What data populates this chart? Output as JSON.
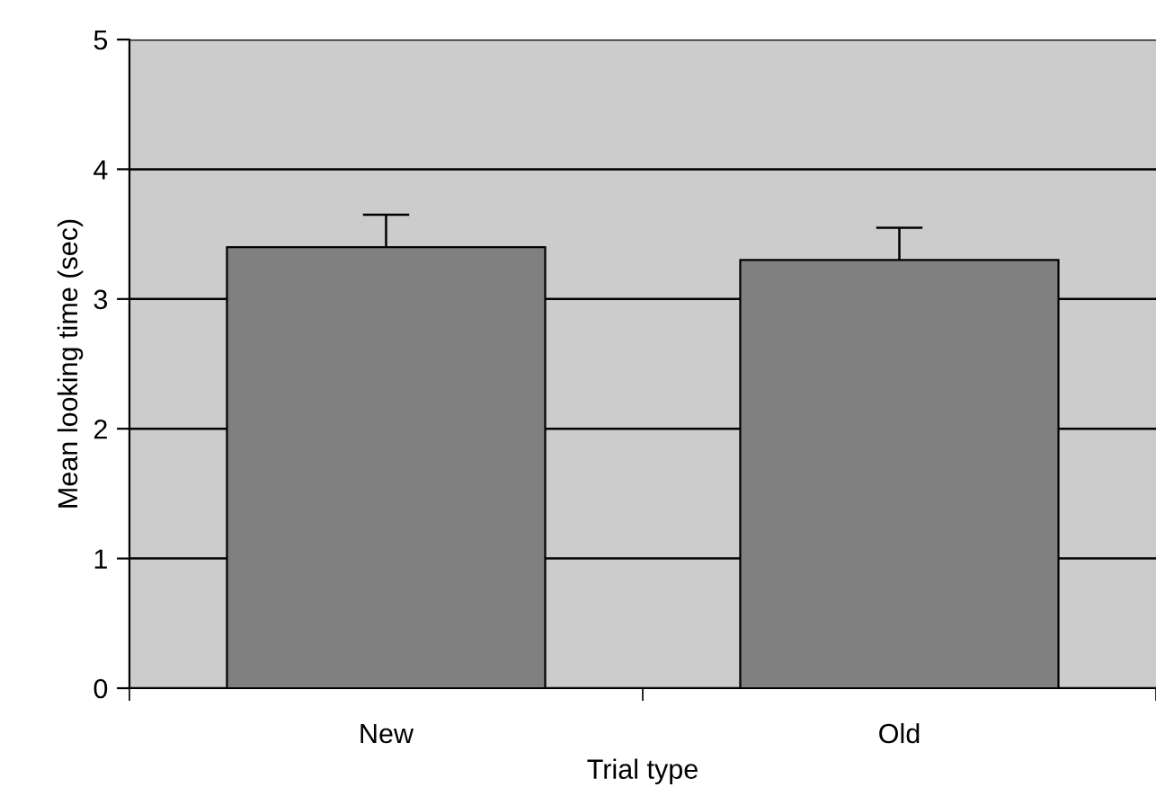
{
  "chart_data": {
    "type": "bar",
    "xlabel": "Trial type",
    "ylabel": "Mean looking time (sec)",
    "categories": [
      "New",
      "Old"
    ],
    "values": [
      3.4,
      3.3
    ],
    "color": "#808080",
    "errors": [
      [
        3.4,
        3.65
      ],
      [
        3.3,
        3.55
      ]
    ],
    "ylim": [
      0,
      5
    ],
    "yticks": [
      0,
      1,
      2,
      3,
      4,
      5
    ],
    "grid": "y"
  }
}
